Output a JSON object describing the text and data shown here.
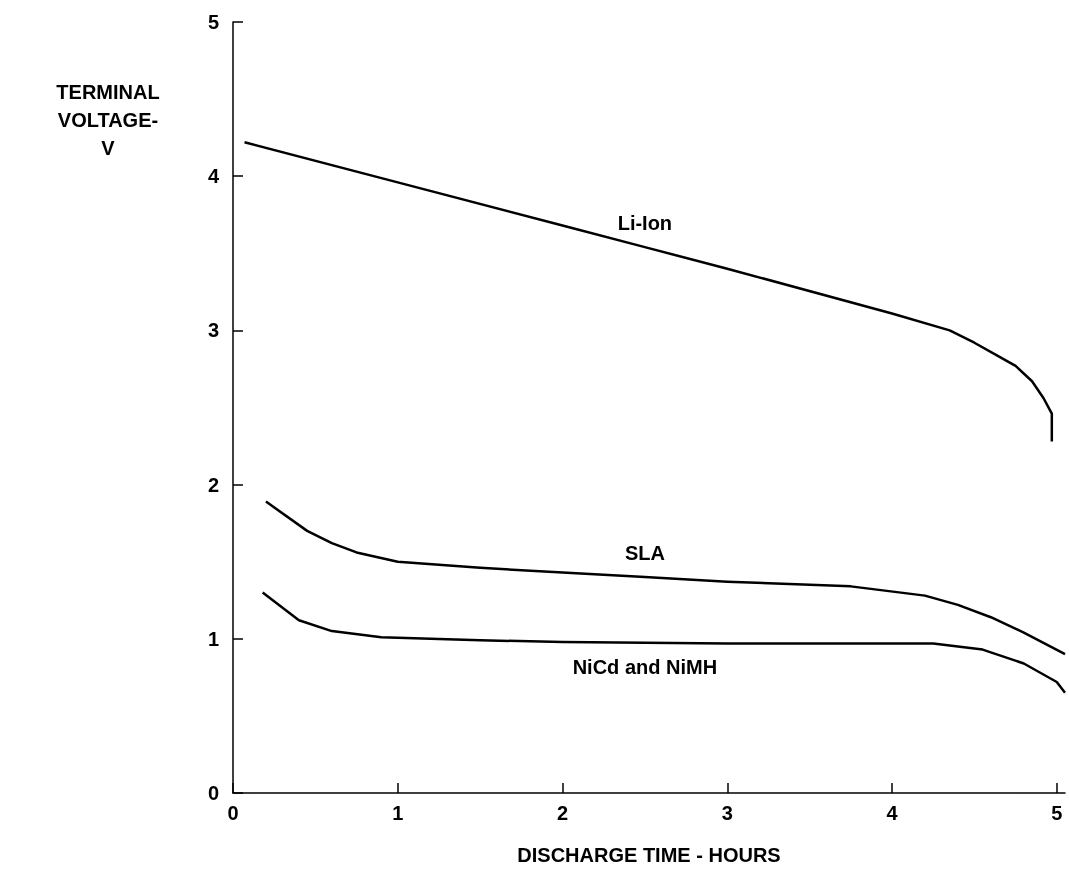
{
  "chart_data": {
    "type": "line",
    "xlabel": "DISCHARGE TIME - HOURS",
    "ylabel": "TERMINAL\nVOLTAGE-\nV",
    "xlim": [
      0,
      5.05
    ],
    "xticks": [
      0,
      1,
      2,
      3,
      4,
      5
    ],
    "ylim": [
      0,
      5
    ],
    "yticks": [
      0,
      1,
      2,
      3,
      4,
      5
    ],
    "grid": false,
    "marker": "none",
    "line_style": "solid",
    "series": [
      {
        "name": "Li-Ion",
        "color": "#000000",
        "x": [
          0.07,
          1,
          2,
          2.5,
          3,
          4,
          4.35,
          4.5,
          4.65,
          4.75,
          4.85,
          4.92,
          4.97,
          4.97
        ],
        "values": [
          4.22,
          3.96,
          3.68,
          3.54,
          3.4,
          3.11,
          3.0,
          2.92,
          2.83,
          2.77,
          2.67,
          2.56,
          2.46,
          2.28
        ]
      },
      {
        "name": "SLA",
        "color": "#000000",
        "x": [
          0.2,
          0.45,
          0.6,
          0.75,
          1,
          1.5,
          2,
          2.5,
          3,
          3.75,
          4.2,
          4.4,
          4.6,
          4.8,
          5.05
        ],
        "values": [
          1.89,
          1.7,
          1.62,
          1.56,
          1.5,
          1.46,
          1.43,
          1.4,
          1.37,
          1.34,
          1.28,
          1.22,
          1.14,
          1.04,
          0.9
        ]
      },
      {
        "name": "NiCd and NiMH",
        "color": "#000000",
        "x": [
          0.18,
          0.4,
          0.6,
          0.9,
          1.5,
          2,
          2.5,
          3,
          4.25,
          4.55,
          4.8,
          5,
          5.05
        ],
        "values": [
          1.3,
          1.12,
          1.05,
          1.01,
          0.99,
          0.98,
          0.975,
          0.97,
          0.97,
          0.93,
          0.84,
          0.72,
          0.65
        ]
      }
    ]
  }
}
